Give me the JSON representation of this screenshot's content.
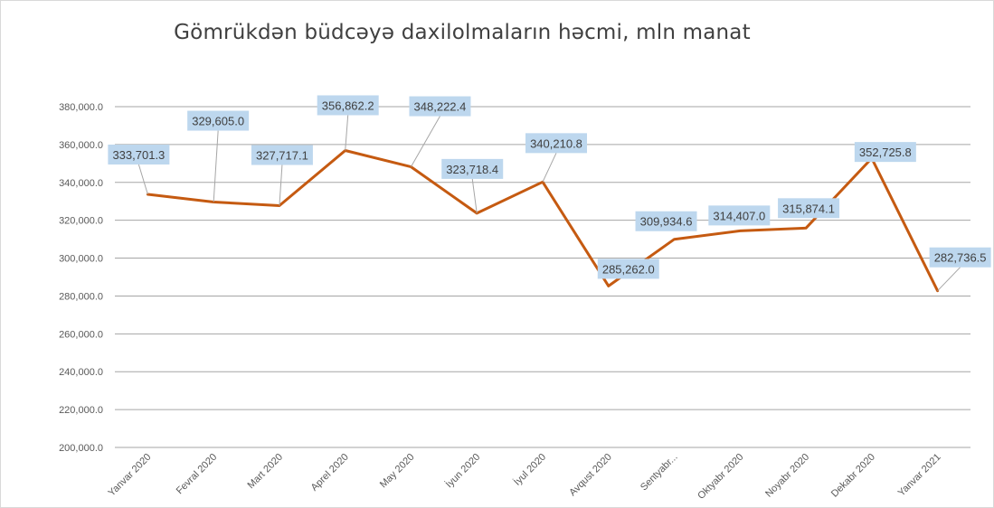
{
  "chart_data": {
    "type": "line",
    "title": "Gömrükdən büdcəyə daxilolmaların həcmi, mln manat",
    "xlabel": "",
    "ylabel": "",
    "categories": [
      "Yanvar 2020",
      "Fevral 2020",
      "Mart 2020",
      "Aprel 2020",
      "May 2020",
      "İyun 2020",
      "İyul 2020",
      "Avqust 2020",
      "Sentyabr...",
      "Oktyabr 2020",
      "Noyabr 2020",
      "Dekabr 2020",
      "Yanvar 2021"
    ],
    "series": [
      {
        "values": [
          333701.3,
          329605.0,
          327717.1,
          356862.2,
          348222.4,
          323718.4,
          340210.8,
          285262.0,
          309934.6,
          314407.0,
          315874.1,
          352725.8,
          282736.5
        ]
      }
    ],
    "data_labels": [
      "333,701.3",
      "329,605.0",
      "327,717.1",
      "356,862.2",
      "348,222.4",
      "323,718.4",
      "340,210.8",
      "285,262.0",
      "309,934.6",
      "314,407.0",
      "315,874.1",
      "352,725.8",
      "282,736.5"
    ],
    "ylim": [
      200000,
      380000
    ],
    "yticks": [
      "200,000.0",
      "220,000.0",
      "240,000.0",
      "260,000.0",
      "280,000.0",
      "300,000.0",
      "320,000.0",
      "340,000.0",
      "360,000.0",
      "380,000.0"
    ],
    "grid": true,
    "legend": "none",
    "colors": {
      "line": "#c55a11",
      "label_fill": "#bdd7ee",
      "grid": "#a6a6a6",
      "leader": "#a6a6a6"
    }
  }
}
